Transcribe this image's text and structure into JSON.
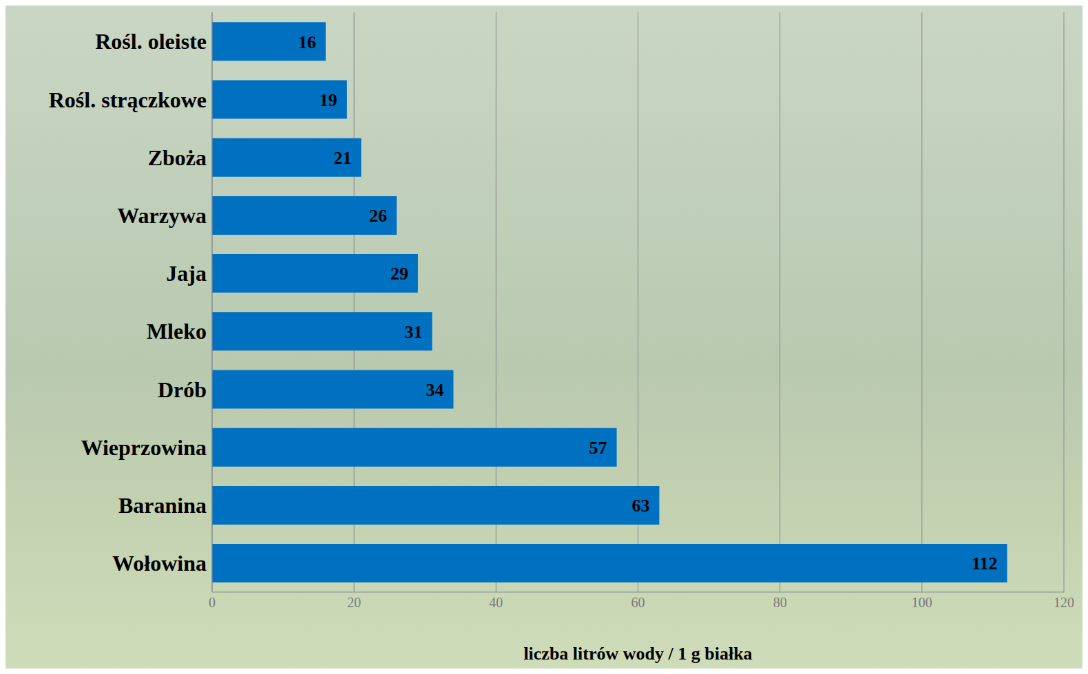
{
  "chart_data": {
    "type": "bar",
    "orientation": "horizontal",
    "categories": [
      "Rośl. oleiste",
      "Rośl. strączkowe",
      "Zboża",
      "Warzywa",
      "Jaja",
      "Mleko",
      "Drób",
      "Wieprzowina",
      "Baranina",
      "Wołowina"
    ],
    "values": [
      16,
      19,
      21,
      26,
      29,
      31,
      34,
      57,
      63,
      112
    ],
    "color": "#0070c0",
    "xlabel": "liczba litrów wody / 1 g białka",
    "xlim": [
      0,
      120
    ],
    "xticks": [
      0,
      20,
      40,
      60,
      80,
      100,
      120
    ],
    "grid": true,
    "data_labels": true
  }
}
